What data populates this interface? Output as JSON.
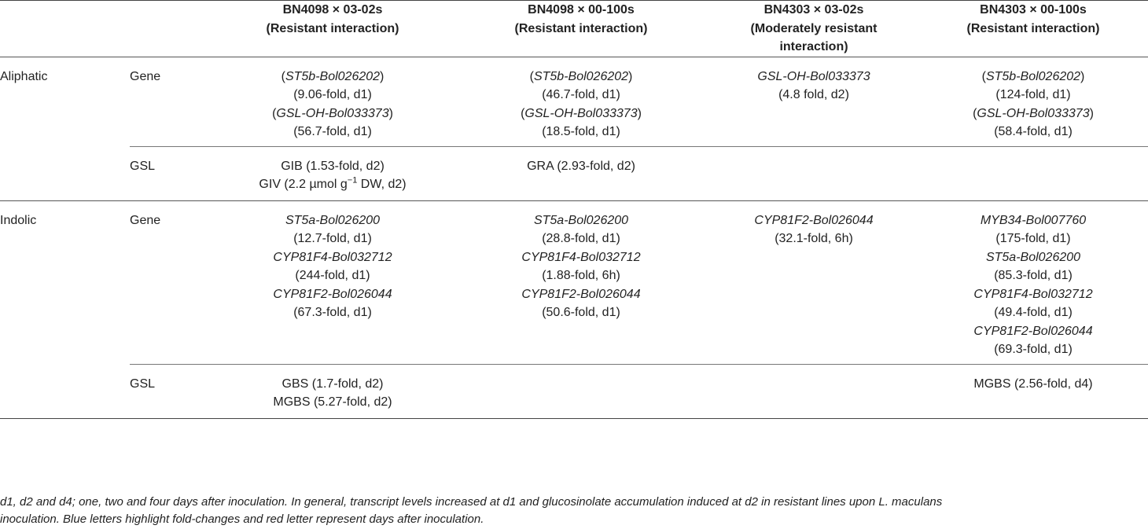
{
  "header": {
    "cols": [
      {
        "line1": "BN4098 × 03-02s",
        "line2": "(Resistant interaction)",
        "line3": ""
      },
      {
        "line1": "BN4098 × 00-100s",
        "line2": "(Resistant interaction)",
        "line3": ""
      },
      {
        "line1": "BN4303 × 03-02s",
        "line2": "(Moderately resistant",
        "line3": "interaction)"
      },
      {
        "line1": "BN4303 × 00-100s",
        "line2": "(Resistant interaction)",
        "line3": ""
      }
    ]
  },
  "rows": {
    "aliphatic_label": "Aliphatic",
    "indolic_label": "Indolic",
    "gene_label": "Gene",
    "gsl_label": "GSL",
    "aliphatic_gene": [
      [
        "(ST5b-Bol026202)",
        "(9.06-fold, d1)",
        "(GSL-OH-Bol033373)",
        "(56.7-fold, d1)"
      ],
      [
        "(ST5b-Bol026202)",
        "(46.7-fold, d1)",
        "(GSL-OH-Bol033373)",
        "(18.5-fold, d1)"
      ],
      [
        "GSL-OH-Bol033373",
        "(4.8 fold, d2)",
        "",
        ""
      ],
      [
        "(ST5b-Bol026202)",
        "(124-fold, d1)",
        "(GSL-OH-Bol033373)",
        "(58.4-fold, d1)"
      ]
    ],
    "aliphatic_gsl": [
      [
        "GIB (1.53-fold, d2)",
        "GIV (2.2 µmol g",
        "−1",
        " DW, d2)"
      ],
      [
        "GRA (2.93-fold, d2)",
        "",
        "",
        ""
      ],
      [
        "",
        "",
        "",
        ""
      ],
      [
        "",
        "",
        "",
        ""
      ]
    ],
    "indolic_gene": [
      [
        "ST5a-Bol026200",
        "(12.7-fold, d1)",
        "CYP81F4-Bol032712",
        "(244-fold, d1)",
        "CYP81F2-Bol026044",
        "(67.3-fold, d1)",
        "",
        "",
        "",
        ""
      ],
      [
        "ST5a-Bol026200",
        "(28.8-fold, d1)",
        "CYP81F4-Bol032712",
        "(1.88-fold, 6h)",
        "CYP81F2-Bol026044",
        "(50.6-fold, d1)",
        "",
        "",
        "",
        ""
      ],
      [
        "CYP81F2-Bol026044",
        "(32.1-fold, 6h)",
        "",
        "",
        "",
        "",
        "",
        "",
        "",
        ""
      ],
      [
        "MYB34-Bol007760",
        "(175-fold, d1)",
        "ST5a-Bol026200",
        "(85.3-fold, d1)",
        "CYP81F4-Bol032712",
        "(49.4-fold, d1)",
        "CYP81F2-Bol026044",
        "(69.3-fold, d1)",
        "",
        ""
      ]
    ],
    "indolic_gsl": [
      [
        "GBS (1.7-fold, d2)",
        "MGBS (5.27-fold, d2)"
      ],
      [
        "",
        ""
      ],
      [
        "",
        ""
      ],
      [
        "MGBS (2.56-fold, d4)",
        ""
      ]
    ]
  },
  "footnote": {
    "line1": "d1, d2 and d4; one, two and four days after inoculation. In general, transcript levels increased at d1 and glucosinolate accumulation induced at d2 in resistant lines upon L. maculans",
    "line2": "inoculation. Blue letters highlight fold-changes and red letter represent days after inoculation."
  }
}
